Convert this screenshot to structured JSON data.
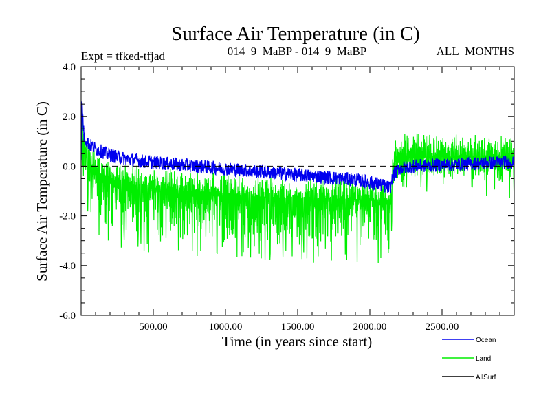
{
  "chart_data": {
    "type": "line",
    "title": "Surface Air Temperature (in C)",
    "subtitle_left": "Expt = tfked-tfjad",
    "subtitle_center": "014_9_MaBP - 014_9_MaBP",
    "subtitle_right": "ALL_MONTHS",
    "xlabel": "Time (in years since start)",
    "ylabel": "Surface Air Temperature (in C)",
    "xlim": [
      0,
      3000
    ],
    "ylim": [
      -6,
      4
    ],
    "xticks": [
      500,
      1000,
      1500,
      2000,
      2500
    ],
    "xtick_labels": [
      "500.00",
      "1000.00",
      "1500.00",
      "2000.00",
      "2500.00"
    ],
    "yticks": [
      -6,
      -4,
      -2,
      0,
      2,
      4
    ],
    "ytick_labels": [
      "-6.0",
      "-4.0",
      "-2.0",
      "0.0",
      "2.0",
      "4.0"
    ],
    "reference_line": 0,
    "grid": false,
    "legend_position": "bottom-right",
    "series": [
      {
        "name": "Land",
        "color": "#00ee00",
        "x": [
          0,
          5,
          20,
          50,
          100,
          200,
          300,
          500,
          700,
          900,
          1100,
          1300,
          1500,
          1700,
          1900,
          2050,
          2100,
          2140,
          2160,
          2170,
          2200,
          2300,
          2500,
          2700,
          2900,
          3000
        ],
        "mean": [
          0.3,
          1.3,
          0.8,
          0.3,
          -0.2,
          -0.5,
          -0.7,
          -0.9,
          -1.0,
          -1.1,
          -1.2,
          -1.25,
          -1.3,
          -1.3,
          -1.35,
          -1.35,
          -1.4,
          -1.45,
          -0.5,
          0.3,
          0.35,
          0.4,
          0.4,
          0.35,
          0.3,
          0.3
        ],
        "spread_low": [
          -1.0,
          -0.5,
          -1.0,
          -1.8,
          -2.4,
          -2.7,
          -2.9,
          -3.0,
          -3.1,
          -3.2,
          -3.3,
          -3.3,
          -3.4,
          -3.4,
          -3.4,
          -3.4,
          -3.5,
          -3.6,
          -1.2,
          -0.7,
          -0.6,
          -0.6,
          -0.6,
          -0.7,
          -0.8,
          -0.8
        ],
        "spread_high": [
          1.0,
          3.3,
          1.6,
          1.0,
          0.6,
          0.3,
          0.1,
          0.0,
          -0.1,
          -0.2,
          -0.3,
          -0.3,
          -0.4,
          -0.4,
          -0.4,
          -0.5,
          -0.5,
          -0.5,
          0.7,
          1.2,
          1.3,
          1.4,
          1.3,
          1.3,
          1.3,
          1.3
        ]
      },
      {
        "name": "Ocean",
        "color": "#0000ee",
        "x": [
          0,
          5,
          20,
          50,
          100,
          200,
          300,
          500,
          700,
          900,
          1100,
          1300,
          1500,
          1700,
          1900,
          2050,
          2100,
          2140,
          2160,
          2200,
          2300,
          2500,
          2700,
          2900,
          3000
        ],
        "mean": [
          0.5,
          2.6,
          1.2,
          0.9,
          0.7,
          0.45,
          0.3,
          0.15,
          0.05,
          -0.05,
          -0.15,
          -0.25,
          -0.35,
          -0.45,
          -0.55,
          -0.7,
          -0.8,
          -0.9,
          -0.4,
          -0.1,
          0.0,
          0.05,
          0.1,
          0.15,
          0.15
        ]
      },
      {
        "name": "AllSurf",
        "color": "#000000",
        "x": [],
        "mean": []
      }
    ]
  }
}
